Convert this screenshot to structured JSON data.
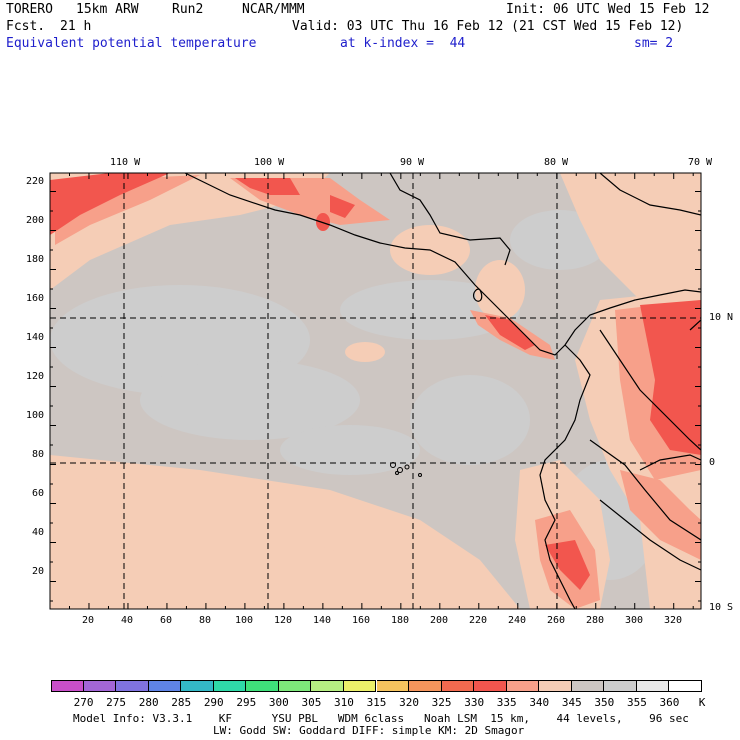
{
  "header": {
    "model": "TORERO",
    "resolution": "15km ARW",
    "run": "Run2",
    "org": "NCAR/MMM",
    "init": "Init: 06 UTC Wed 15 Feb 12",
    "fcst_label": "Fcst.",
    "fcst_hours": "21 h",
    "valid": "Valid: 03 UTC Thu 16 Feb 12 (21 CST Wed 15 Feb 12)",
    "field": "Equivalent potential temperature",
    "level": "at k-index =  44",
    "smoothing": "sm= 2"
  },
  "map": {
    "lon_labels": [
      "110 W",
      "100 W",
      "90 W",
      "80 W",
      "70 W"
    ],
    "lat_labels": [
      "10 N",
      "0",
      "10 S"
    ],
    "grid_y_labels": [
      "220",
      "200",
      "180",
      "160",
      "140",
      "120",
      "100",
      "80",
      "60",
      "40",
      "20"
    ],
    "grid_x_labels": [
      "20",
      "40",
      "60",
      "80",
      "100",
      "120",
      "140",
      "160",
      "180",
      "200",
      "220",
      "240",
      "260",
      "280",
      "300",
      "320"
    ],
    "colors": {
      "base_grey": "#cdc6c2",
      "light_grey": "#cdcdcd",
      "peach": "#f5cdb6",
      "salmon": "#f7a08a",
      "red": "#f2564e"
    }
  },
  "colorbar": {
    "unit": "K",
    "labels": [
      "270",
      "275",
      "280",
      "285",
      "290",
      "295",
      "300",
      "305",
      "310",
      "315",
      "320",
      "325",
      "330",
      "335",
      "340",
      "345",
      "350",
      "355",
      "360"
    ],
    "colors": [
      "#c94fc9",
      "#a366d6",
      "#8073e0",
      "#5f84e6",
      "#34b8c6",
      "#2fd9a8",
      "#3fe07a",
      "#7de87a",
      "#b6ef82",
      "#ecf06a",
      "#f6c45e",
      "#f5955c",
      "#f26a4f",
      "#f2564e",
      "#f7a08a",
      "#f5cdb6",
      "#cdc6c2",
      "#cdcdcd",
      "#e8e8e8",
      "#ffffff"
    ]
  },
  "footer": {
    "line1": "Model Info: V3.3.1    KF      YSU PBL   WDM 6class   Noah LSM  15 km,    44 levels,    96 sec",
    "line2": "LW: Godd SW: Goddard DIFF: simple KM: 2D Smagor"
  }
}
